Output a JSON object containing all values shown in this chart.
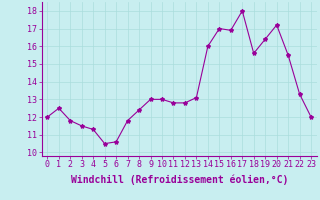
{
  "x": [
    0,
    1,
    2,
    3,
    4,
    5,
    6,
    7,
    8,
    9,
    10,
    11,
    12,
    13,
    14,
    15,
    16,
    17,
    18,
    19,
    20,
    21,
    22,
    23
  ],
  "y": [
    12.0,
    12.5,
    11.8,
    11.5,
    11.3,
    10.5,
    10.6,
    11.8,
    12.4,
    13.0,
    13.0,
    12.8,
    12.8,
    13.1,
    16.0,
    17.0,
    16.9,
    18.0,
    15.6,
    16.4,
    17.2,
    15.5,
    13.3,
    12.0
  ],
  "line_color": "#990099",
  "marker": "*",
  "marker_size": 3,
  "bg_color": "#c8eef0",
  "grid_color": "#aadddd",
  "xlabel": "Windchill (Refroidissement éolien,°C)",
  "xlabel_fontsize": 7,
  "ylim": [
    9.8,
    18.5
  ],
  "xlim": [
    -0.5,
    23.5
  ],
  "yticks": [
    10,
    11,
    12,
    13,
    14,
    15,
    16,
    17,
    18
  ],
  "xticks": [
    0,
    1,
    2,
    3,
    4,
    5,
    6,
    7,
    8,
    9,
    10,
    11,
    12,
    13,
    14,
    15,
    16,
    17,
    18,
    19,
    20,
    21,
    22,
    23
  ],
  "tick_fontsize": 6
}
